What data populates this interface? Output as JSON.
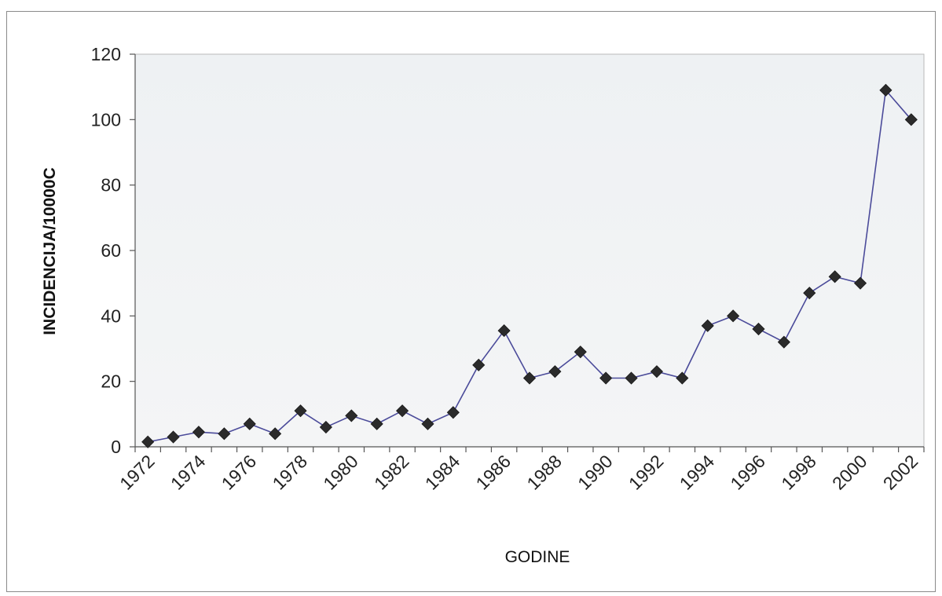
{
  "chart_data": {
    "type": "line",
    "xlabel": "GODINE",
    "ylabel": "INCIDENCIJA/10000C",
    "ylim": [
      0,
      120
    ],
    "yticks": [
      0,
      20,
      40,
      60,
      80,
      100,
      120
    ],
    "xticks": [
      1972,
      1974,
      1976,
      1978,
      1980,
      1982,
      1984,
      1986,
      1988,
      1990,
      1992,
      1994,
      1996,
      1998,
      2000,
      2002
    ],
    "grid": false,
    "legend": "none",
    "series": [
      {
        "x": [
          1972,
          1973,
          1974,
          1975,
          1976,
          1977,
          1978,
          1979,
          1980,
          1981,
          1982,
          1983,
          1984,
          1985,
          1986,
          1987,
          1988,
          1989,
          1990,
          1991,
          1992,
          1993,
          1994,
          1995,
          1996,
          1997,
          1998,
          1999,
          2000,
          2001,
          2002
        ],
        "values": [
          1.5,
          3,
          4.5,
          4,
          7,
          4,
          11,
          6,
          9.5,
          7,
          11,
          7,
          10.5,
          25,
          35.5,
          21,
          23,
          29,
          21,
          21,
          23,
          21,
          37,
          40,
          36,
          32,
          47,
          52,
          50,
          109,
          100
        ]
      }
    ],
    "colors": {
      "line": "#4b4b9a",
      "marker": "#2b2b2b",
      "plot_background": "#f0f2f4"
    }
  }
}
